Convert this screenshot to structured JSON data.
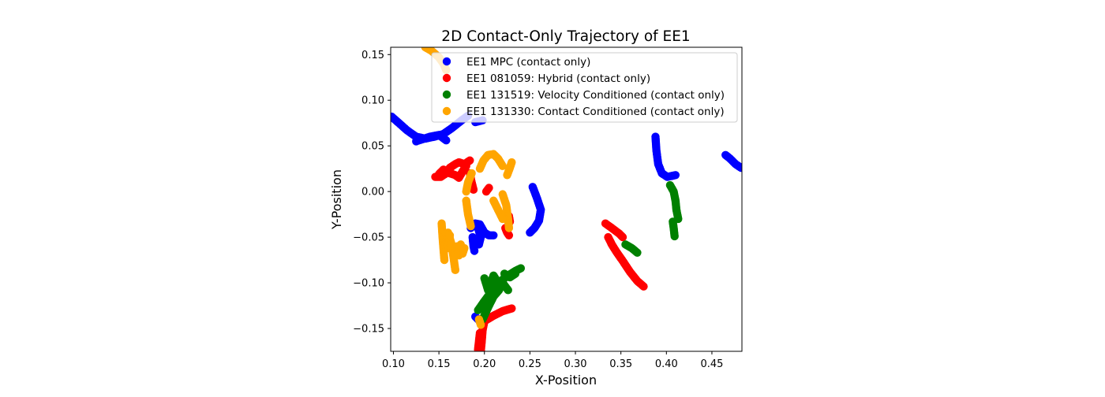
{
  "chart_data": {
    "type": "scatter",
    "title": "2D Contact-Only Trajectory of EE1",
    "xlabel": "X-Position",
    "ylabel": "Y-Position",
    "xlim": [
      0.097,
      0.483
    ],
    "ylim": [
      -0.175,
      0.158
    ],
    "xticks": [
      0.1,
      0.15,
      0.2,
      0.25,
      0.3,
      0.35,
      0.4,
      0.45
    ],
    "xtick_labels": [
      "0.10",
      "0.15",
      "0.20",
      "0.25",
      "0.30",
      "0.35",
      "0.40",
      "0.45"
    ],
    "yticks": [
      -0.15,
      -0.1,
      -0.05,
      0.0,
      0.05,
      0.1,
      0.15
    ],
    "ytick_labels": [
      "−0.15",
      "−0.10",
      "−0.05",
      "0.00",
      "0.05",
      "0.10",
      "0.15"
    ],
    "grid": false,
    "legend_position": "top-right",
    "series": [
      {
        "name": "EE1 MPC (contact only)",
        "color": "#0000ff",
        "strokes": [
          [
            [
              0.098,
              0.082
            ],
            [
              0.106,
              0.075
            ],
            [
              0.115,
              0.067
            ],
            [
              0.125,
              0.06
            ],
            [
              0.135,
              0.058
            ],
            [
              0.145,
              0.06
            ],
            [
              0.155,
              0.063
            ],
            [
              0.165,
              0.07
            ],
            [
              0.175,
              0.078
            ],
            [
              0.182,
              0.083
            ]
          ],
          [
            [
              0.125,
              0.055
            ],
            [
              0.14,
              0.06
            ],
            [
              0.15,
              0.062
            ],
            [
              0.158,
              0.056
            ]
          ],
          [
            [
              0.19,
              0.076
            ],
            [
              0.198,
              0.078
            ]
          ],
          [
            [
              0.185,
              -0.04
            ],
            [
              0.19,
              -0.035
            ],
            [
              0.195,
              -0.036
            ],
            [
              0.2,
              -0.045
            ],
            [
              0.205,
              -0.048
            ],
            [
              0.21,
              -0.048
            ]
          ],
          [
            [
              0.187,
              -0.05
            ],
            [
              0.188,
              -0.06
            ],
            [
              0.189,
              -0.065
            ]
          ],
          [
            [
              0.193,
              -0.04
            ],
            [
              0.196,
              -0.05
            ],
            [
              0.194,
              -0.058
            ]
          ],
          [
            [
              0.25,
              -0.045
            ],
            [
              0.255,
              -0.04
            ],
            [
              0.26,
              -0.032
            ],
            [
              0.262,
              -0.02
            ],
            [
              0.258,
              -0.008
            ],
            [
              0.255,
              0.0
            ],
            [
              0.253,
              0.005
            ]
          ],
          [
            [
              0.388,
              0.06
            ],
            [
              0.389,
              0.045
            ],
            [
              0.391,
              0.03
            ],
            [
              0.395,
              0.02
            ],
            [
              0.401,
              0.016
            ],
            [
              0.41,
              0.018
            ]
          ],
          [
            [
              0.465,
              0.04
            ],
            [
              0.47,
              0.036
            ],
            [
              0.476,
              0.03
            ],
            [
              0.482,
              0.026
            ]
          ],
          [
            [
              0.19,
              -0.137
            ],
            [
              0.193,
              -0.14
            ]
          ]
        ]
      },
      {
        "name": "EE1 081059: Hybrid (contact only)",
        "color": "#ff0000",
        "strokes": [
          [
            [
              0.146,
              0.016
            ],
            [
              0.152,
              0.016
            ],
            [
              0.158,
              0.02
            ],
            [
              0.162,
              0.026
            ],
            [
              0.168,
              0.03
            ],
            [
              0.172,
              0.032
            ],
            [
              0.178,
              0.03
            ],
            [
              0.184,
              0.034
            ]
          ],
          [
            [
              0.15,
              0.019
            ],
            [
              0.155,
              0.024
            ],
            [
              0.162,
              0.02
            ],
            [
              0.168,
              0.018
            ],
            [
              0.172,
              0.015
            ],
            [
              0.176,
              0.022
            ],
            [
              0.18,
              0.028
            ]
          ],
          [
            [
              0.184,
              0.02
            ],
            [
              0.186,
              0.01
            ],
            [
              0.188,
              0.002
            ]
          ],
          [
            [
              0.202,
              0.0
            ],
            [
              0.205,
              0.004
            ]
          ],
          [
            [
              0.223,
              -0.04
            ],
            [
              0.225,
              -0.045
            ],
            [
              0.227,
              -0.048
            ]
          ],
          [
            [
              0.227,
              -0.027
            ],
            [
              0.228,
              -0.033
            ]
          ],
          [
            [
              0.333,
              -0.035
            ],
            [
              0.34,
              -0.04
            ],
            [
              0.348,
              -0.046
            ],
            [
              0.352,
              -0.05
            ]
          ],
          [
            [
              0.336,
              -0.05
            ],
            [
              0.34,
              -0.058
            ],
            [
              0.345,
              -0.066
            ],
            [
              0.352,
              -0.076
            ],
            [
              0.36,
              -0.088
            ],
            [
              0.368,
              -0.098
            ],
            [
              0.375,
              -0.104
            ]
          ],
          [
            [
              0.196,
              -0.175
            ],
            [
              0.197,
              -0.165
            ],
            [
              0.198,
              -0.152
            ],
            [
              0.2,
              -0.142
            ],
            [
              0.21,
              -0.136
            ],
            [
              0.22,
              -0.131
            ],
            [
              0.23,
              -0.128
            ]
          ],
          [
            [
              0.193,
              -0.173
            ],
            [
              0.195,
              -0.155
            ]
          ]
        ]
      },
      {
        "name": "EE1 131519: Velocity Conditioned (contact only)",
        "color": "#008000",
        "strokes": [
          [
            [
              0.193,
              -0.13
            ],
            [
              0.2,
              -0.12
            ],
            [
              0.206,
              -0.112
            ],
            [
              0.212,
              -0.104
            ],
            [
              0.218,
              -0.098
            ],
            [
              0.226,
              -0.092
            ],
            [
              0.234,
              -0.087
            ],
            [
              0.24,
              -0.084
            ]
          ],
          [
            [
              0.198,
              -0.14
            ],
            [
              0.205,
              -0.125
            ],
            [
              0.21,
              -0.115
            ],
            [
              0.216,
              -0.108
            ],
            [
              0.22,
              -0.1
            ],
            [
              0.226,
              -0.108
            ]
          ],
          [
            [
              0.2,
              -0.095
            ],
            [
              0.204,
              -0.108
            ],
            [
              0.21,
              -0.092
            ],
            [
              0.215,
              -0.1
            ]
          ],
          [
            [
              0.222,
              -0.09
            ],
            [
              0.228,
              -0.094
            ],
            [
              0.234,
              -0.09
            ]
          ],
          [
            [
              0.355,
              -0.058
            ],
            [
              0.362,
              -0.062
            ],
            [
              0.368,
              -0.067
            ]
          ],
          [
            [
              0.404,
              0.007
            ],
            [
              0.408,
              0.0
            ],
            [
              0.41,
              -0.01
            ],
            [
              0.411,
              -0.02
            ],
            [
              0.413,
              -0.03
            ]
          ],
          [
            [
              0.407,
              -0.033
            ],
            [
              0.408,
              -0.04
            ],
            [
              0.409,
              -0.049
            ]
          ]
        ]
      },
      {
        "name": "EE1 131330: Contact Conditioned (contact only)",
        "color": "#ffa500",
        "strokes": [
          [
            [
              0.135,
              0.158
            ],
            [
              0.142,
              0.154
            ],
            [
              0.15,
              0.147
            ],
            [
              0.155,
              0.14
            ],
            [
              0.158,
              0.133
            ]
          ],
          [
            [
              0.18,
              0.0
            ],
            [
              0.182,
              0.01
            ],
            [
              0.186,
              0.02
            ]
          ],
          [
            [
              0.18,
              -0.01
            ],
            [
              0.182,
              -0.025
            ],
            [
              0.185,
              -0.038
            ]
          ],
          [
            [
              0.195,
              0.025
            ],
            [
              0.199,
              0.034
            ],
            [
              0.204,
              0.04
            ],
            [
              0.21,
              0.041
            ],
            [
              0.215,
              0.036
            ],
            [
              0.22,
              0.028
            ]
          ],
          [
            [
              0.225,
              0.018
            ],
            [
              0.228,
              0.026
            ],
            [
              0.23,
              0.032
            ]
          ],
          [
            [
              0.22,
              -0.003
            ],
            [
              0.224,
              -0.015
            ],
            [
              0.226,
              -0.03
            ],
            [
              0.227,
              -0.04
            ]
          ],
          [
            [
              0.21,
              -0.01
            ],
            [
              0.215,
              -0.02
            ],
            [
              0.22,
              -0.03
            ]
          ],
          [
            [
              0.153,
              -0.035
            ],
            [
              0.154,
              -0.05
            ],
            [
              0.155,
              -0.063
            ],
            [
              0.156,
              -0.075
            ]
          ],
          [
            [
              0.16,
              -0.045
            ],
            [
              0.164,
              -0.058
            ],
            [
              0.166,
              -0.072
            ],
            [
              0.168,
              -0.086
            ]
          ],
          [
            [
              0.17,
              -0.06
            ],
            [
              0.172,
              -0.07
            ],
            [
              0.174,
              -0.058
            ],
            [
              0.176,
              -0.068
            ],
            [
              0.178,
              -0.062
            ]
          ],
          [
            [
              0.158,
              -0.052
            ],
            [
              0.16,
              -0.062
            ],
            [
              0.162,
              -0.048
            ]
          ],
          [
            [
              0.194,
              -0.14
            ],
            [
              0.196,
              -0.146
            ]
          ]
        ]
      }
    ]
  }
}
